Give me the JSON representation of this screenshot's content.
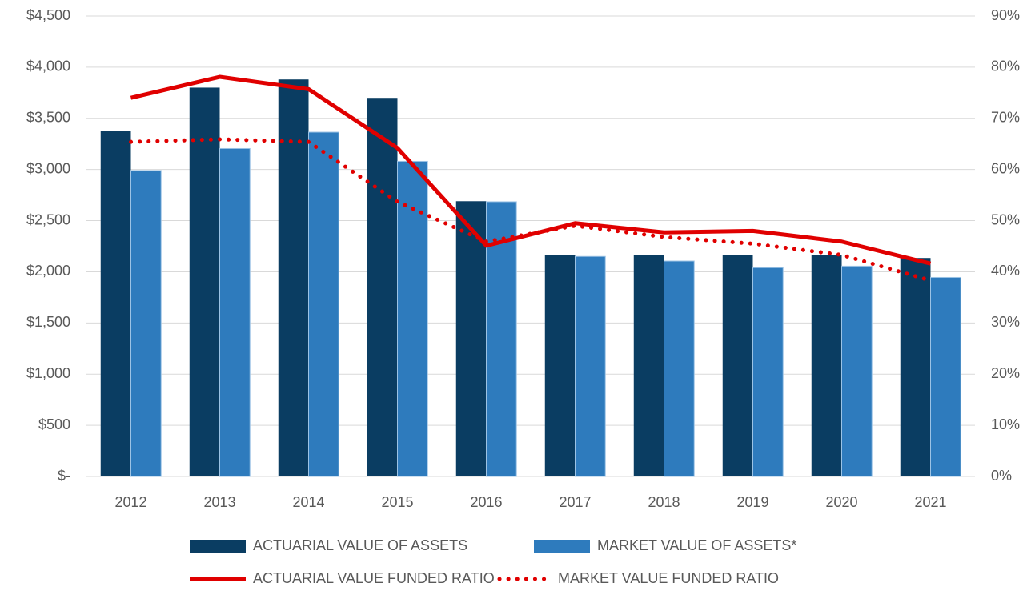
{
  "chart_data": {
    "type": "bar",
    "categories": [
      "2012",
      "2013",
      "2014",
      "2015",
      "2016",
      "2017",
      "2018",
      "2019",
      "2020",
      "2021"
    ],
    "series": [
      {
        "name": "ACTUARIAL VALUE OF ASSETS",
        "type": "bar",
        "color": "#0a3d62",
        "values": [
          3380,
          3800,
          3880,
          3700,
          2690,
          2165,
          2160,
          2165,
          2165,
          2135
        ]
      },
      {
        "name": "MARKET VALUE OF ASSETS*",
        "type": "bar",
        "color": "#2e7bbd",
        "values": [
          2990,
          3205,
          3365,
          3080,
          2685,
          2150,
          2105,
          2040,
          2055,
          1945
        ]
      },
      {
        "name": "ACTUARIAL VALUE FUNDED RATIO",
        "type": "line",
        "axis": "y2",
        "dash": "solid",
        "color": "#e00000",
        "values": [
          74.0,
          78.1,
          75.7,
          64.2,
          45.1,
          49.5,
          47.7,
          48.0,
          45.9,
          41.6
        ]
      },
      {
        "name": "MARKET VALUE FUNDED RATIO",
        "type": "line",
        "axis": "y2",
        "dash": "dotted",
        "color": "#e00000",
        "values": [
          65.4,
          65.9,
          65.4,
          53.7,
          45.9,
          49.0,
          46.8,
          45.5,
          43.3,
          38.3
        ]
      }
    ],
    "ylim": [
      0,
      4500
    ],
    "yticks": [
      {
        "value": 0,
        "label": "$-"
      },
      {
        "value": 500,
        "label": "$500"
      },
      {
        "value": 1000,
        "label": "$1,000"
      },
      {
        "value": 1500,
        "label": "$1,500"
      },
      {
        "value": 2000,
        "label": "$2,000"
      },
      {
        "value": 2500,
        "label": "$2,500"
      },
      {
        "value": 3000,
        "label": "$3,000"
      },
      {
        "value": 3500,
        "label": "$3,500"
      },
      {
        "value": 4000,
        "label": "$4,000"
      },
      {
        "value": 4500,
        "label": "$4,500"
      }
    ],
    "y2lim": [
      0,
      90
    ],
    "y2ticks": [
      {
        "value": 0,
        "label": "0%"
      },
      {
        "value": 10,
        "label": "10%"
      },
      {
        "value": 20,
        "label": "20%"
      },
      {
        "value": 30,
        "label": "30%"
      },
      {
        "value": 40,
        "label": "40%"
      },
      {
        "value": 50,
        "label": "50%"
      },
      {
        "value": 60,
        "label": "60%"
      },
      {
        "value": 70,
        "label": "70%"
      },
      {
        "value": 80,
        "label": "80%"
      },
      {
        "value": 90,
        "label": "90%"
      }
    ],
    "grid": true,
    "legend": "bottom"
  }
}
